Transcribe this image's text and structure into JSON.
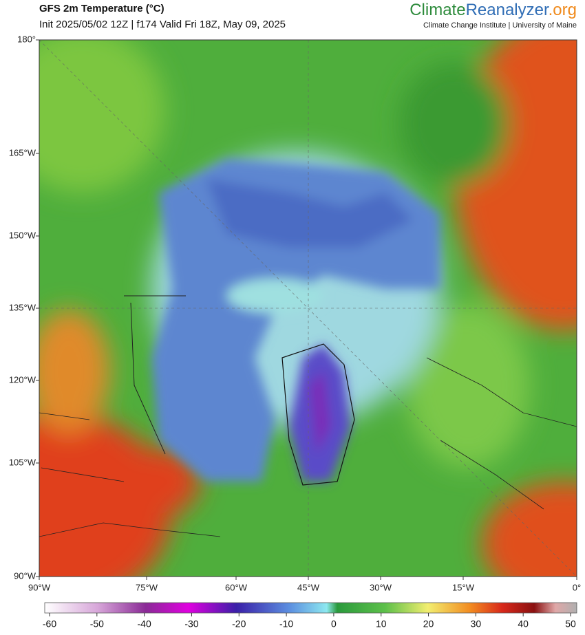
{
  "header": {
    "title": "GFS 2m Temperature (°C)",
    "subtitle": "Init 2025/05/02 12Z | f174 Valid Fri 18Z, May 09, 2025",
    "brand": {
      "part1": "Climate",
      "part2": "Reanalyzer",
      "part3": ".org"
    },
    "credit": "Climate Change Institute | University of Maine"
  },
  "map": {
    "left_labels": [
      "180°",
      "165°W",
      "150°W",
      "135°W",
      "120°W",
      "105°W",
      "90°W"
    ],
    "bottom_labels": [
      "90°W",
      "75°W",
      "60°W",
      "45°W",
      "30°W",
      "15°W",
      "0°"
    ]
  },
  "colorbar": {
    "ticks": [
      -60,
      -50,
      -40,
      -30,
      -20,
      -10,
      0,
      10,
      20,
      30,
      40,
      50
    ]
  }
}
